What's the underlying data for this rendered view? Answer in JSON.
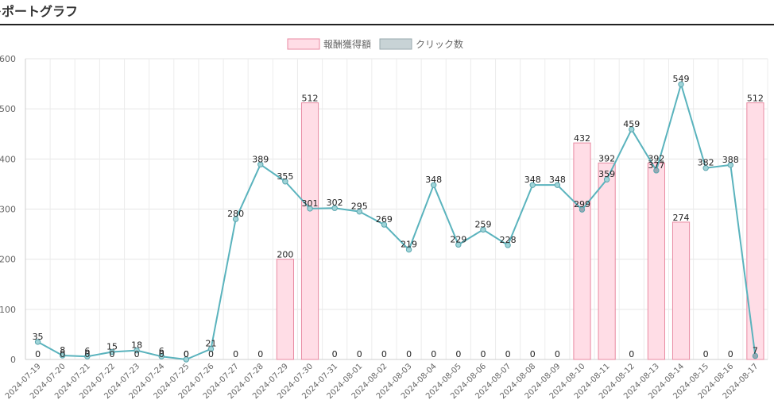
{
  "page": {
    "title": "レポートグラフ"
  },
  "chart_data": {
    "type": "bar",
    "categories": [
      "2024-07-19",
      "2024-07-20",
      "2024-07-21",
      "2024-07-22",
      "2024-07-23",
      "2024-07-24",
      "2024-07-25",
      "2024-07-26",
      "2024-07-27",
      "2024-07-28",
      "2024-07-29",
      "2024-07-30",
      "2024-07-31",
      "2024-08-01",
      "2024-08-02",
      "2024-08-03",
      "2024-08-04",
      "2024-08-05",
      "2024-08-06",
      "2024-08-07",
      "2024-08-08",
      "2024-08-09",
      "2024-08-10",
      "2024-08-11",
      "2024-08-12",
      "2024-08-13",
      "2024-08-14",
      "2024-08-15",
      "2024-08-16",
      "2024-08-17"
    ],
    "series": [
      {
        "name": "報酬獲得額",
        "type": "bar",
        "color": "#ffdde6",
        "border_color": "#e88aa2",
        "values": [
          0,
          0,
          0,
          0,
          0,
          0,
          0,
          0,
          0,
          0,
          200,
          512,
          0,
          0,
          0,
          0,
          0,
          0,
          0,
          0,
          0,
          0,
          432,
          392,
          0,
          392,
          274,
          0,
          0,
          512
        ]
      },
      {
        "name": "クリック数",
        "type": "line",
        "color": "#5ab3bd",
        "values": [
          35,
          8,
          6,
          15,
          18,
          6,
          0,
          21,
          280,
          389,
          355,
          301,
          302,
          295,
          269,
          219,
          348,
          229,
          259,
          228,
          348,
          348,
          299,
          359,
          459,
          377,
          549,
          382,
          388,
          7
        ]
      }
    ],
    "ylim": [
      0,
      600
    ],
    "yticks": [
      "0",
      "100",
      "200",
      "300",
      "400",
      "500",
      "600"
    ],
    "grid": true,
    "legend_position": "top-center",
    "xlabel": "",
    "ylabel": ""
  }
}
